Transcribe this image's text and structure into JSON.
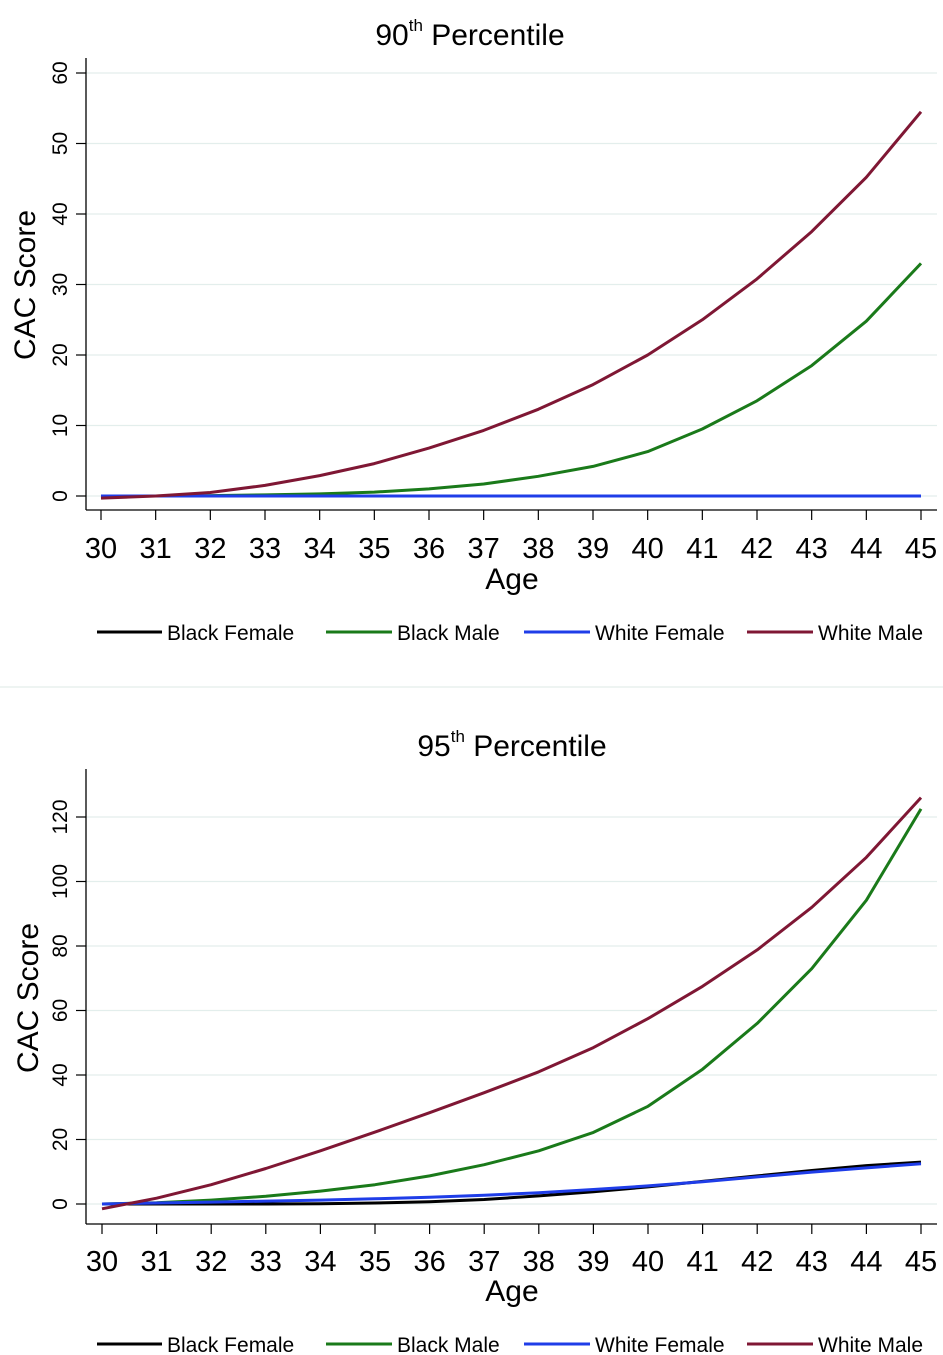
{
  "chart_data": [
    {
      "type": "line",
      "title": "90th Percentile",
      "title_main": "90",
      "title_sup": "th",
      "title_rest": " Percentile",
      "xlabel": "Age",
      "ylabel": "CAC Score",
      "x": [
        30,
        31,
        32,
        33,
        34,
        35,
        36,
        37,
        38,
        39,
        40,
        41,
        42,
        43,
        44,
        45
      ],
      "xlim": [
        30,
        45
      ],
      "ylim": [
        -2,
        62
      ],
      "yticks": [
        0,
        10,
        20,
        30,
        40,
        50,
        60
      ],
      "grid": true,
      "legend_position": "bottom",
      "series": [
        {
          "name": "Black Female",
          "color": "#000000",
          "values": [
            0,
            0,
            0,
            0,
            0,
            0,
            0,
            0,
            0,
            0,
            0,
            0,
            0,
            0,
            0,
            0
          ]
        },
        {
          "name": "Black Male",
          "color": "#1a7a1a",
          "values": [
            0,
            0,
            0.05,
            0.15,
            0.3,
            0.55,
            1.0,
            1.7,
            2.8,
            4.2,
            6.3,
            9.5,
            13.5,
            18.5,
            24.8,
            33.0
          ]
        },
        {
          "name": "White Female",
          "color": "#1f3de8",
          "values": [
            0,
            0,
            0,
            0,
            0,
            0,
            0,
            0,
            0,
            0,
            0,
            0,
            0,
            0,
            0,
            0
          ]
        },
        {
          "name": "White Male",
          "color": "#7f1734",
          "values": [
            -0.3,
            0,
            0.5,
            1.5,
            2.9,
            4.6,
            6.8,
            9.3,
            12.3,
            15.8,
            20.0,
            25.0,
            30.8,
            37.5,
            45.2,
            54.5
          ]
        }
      ]
    },
    {
      "type": "line",
      "title": "95th Percentile",
      "title_main": "95",
      "title_sup": "th",
      "title_rest": " Percentile",
      "xlabel": "Age",
      "ylabel": "CAC Score",
      "x": [
        30,
        31,
        32,
        33,
        34,
        35,
        36,
        37,
        38,
        39,
        40,
        41,
        42,
        43,
        44,
        45
      ],
      "xlim": [
        30,
        45
      ],
      "ylim": [
        -5,
        135
      ],
      "yticks": [
        0,
        20,
        40,
        60,
        80,
        100,
        120
      ],
      "grid": true,
      "legend_position": "bottom",
      "series": [
        {
          "name": "Black Female",
          "color": "#000000",
          "values": [
            0,
            0,
            0,
            0,
            0.1,
            0.3,
            0.7,
            1.4,
            2.5,
            3.8,
            5.3,
            7.0,
            8.7,
            10.4,
            11.9,
            13.0
          ]
        },
        {
          "name": "Black Male",
          "color": "#1a7a1a",
          "values": [
            0,
            0.4,
            1.2,
            2.4,
            4.0,
            6.0,
            8.7,
            12.2,
            16.5,
            22.2,
            30.3,
            41.8,
            56.0,
            73.0,
            94.2,
            122.5
          ]
        },
        {
          "name": "White Female",
          "color": "#1f3de8",
          "values": [
            0,
            0.3,
            0.6,
            0.9,
            1.2,
            1.6,
            2.1,
            2.7,
            3.5,
            4.5,
            5.6,
            6.9,
            8.4,
            9.9,
            11.2,
            12.5
          ]
        },
        {
          "name": "White Male",
          "color": "#7f1734",
          "values": [
            -1.5,
            1.8,
            6.0,
            11.0,
            16.5,
            22.3,
            28.3,
            34.5,
            41.0,
            48.5,
            57.5,
            67.5,
            78.8,
            92.0,
            107.5,
            126.0
          ]
        }
      ]
    }
  ]
}
